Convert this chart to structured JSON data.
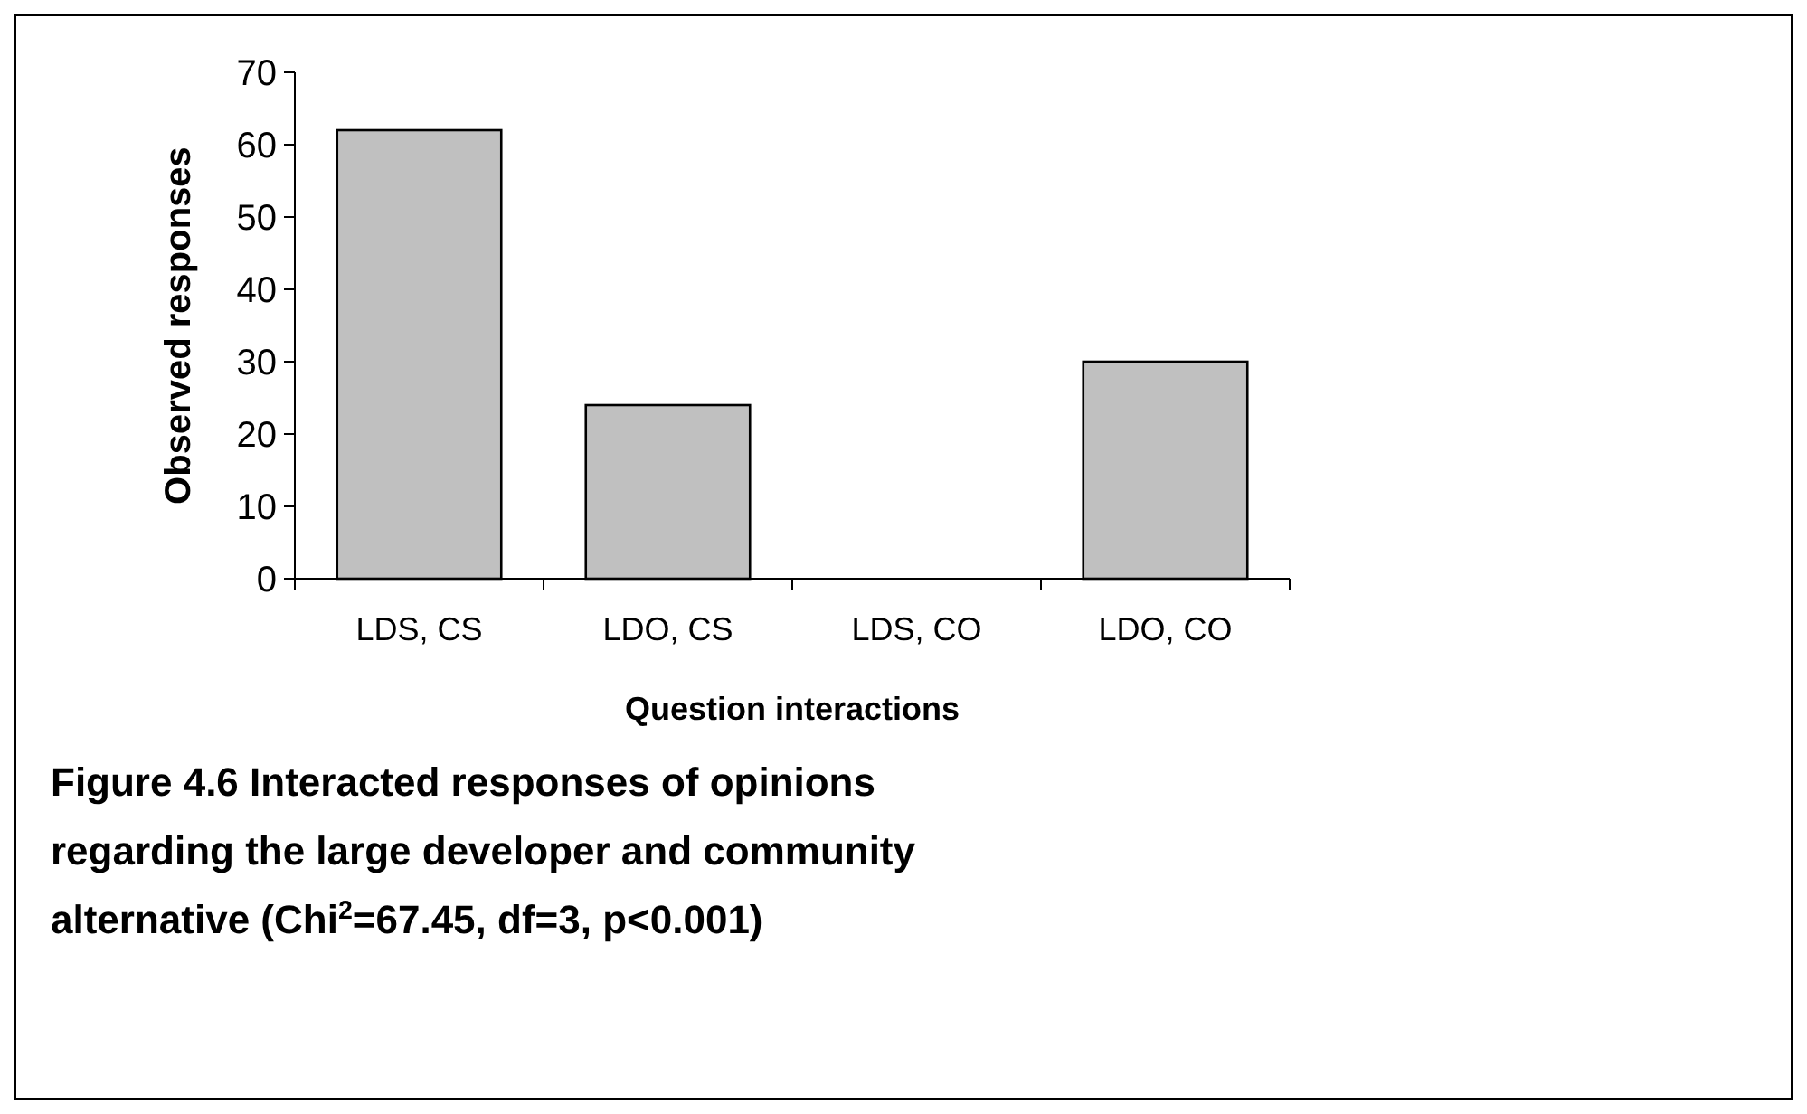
{
  "chart_data": {
    "type": "bar",
    "title": "Figure 4.6 Interacted responses of opinions regarding the large developer and community alternative (Chi$^{2}$=67.45, df=3, p<0.001)",
    "xlabel": "Question interactions",
    "ylabel": "Observed responses",
    "categories": [
      "LDS, CS",
      "LDO, CS",
      "LDS, CO",
      "LDO, CO"
    ],
    "values": [
      62,
      24,
      0,
      30
    ],
    "color": "#c0c0c0",
    "ylim": [
      0,
      70
    ],
    "yticks": [
      0,
      10,
      20,
      30,
      40,
      50,
      60,
      70
    ],
    "grid": false
  }
}
